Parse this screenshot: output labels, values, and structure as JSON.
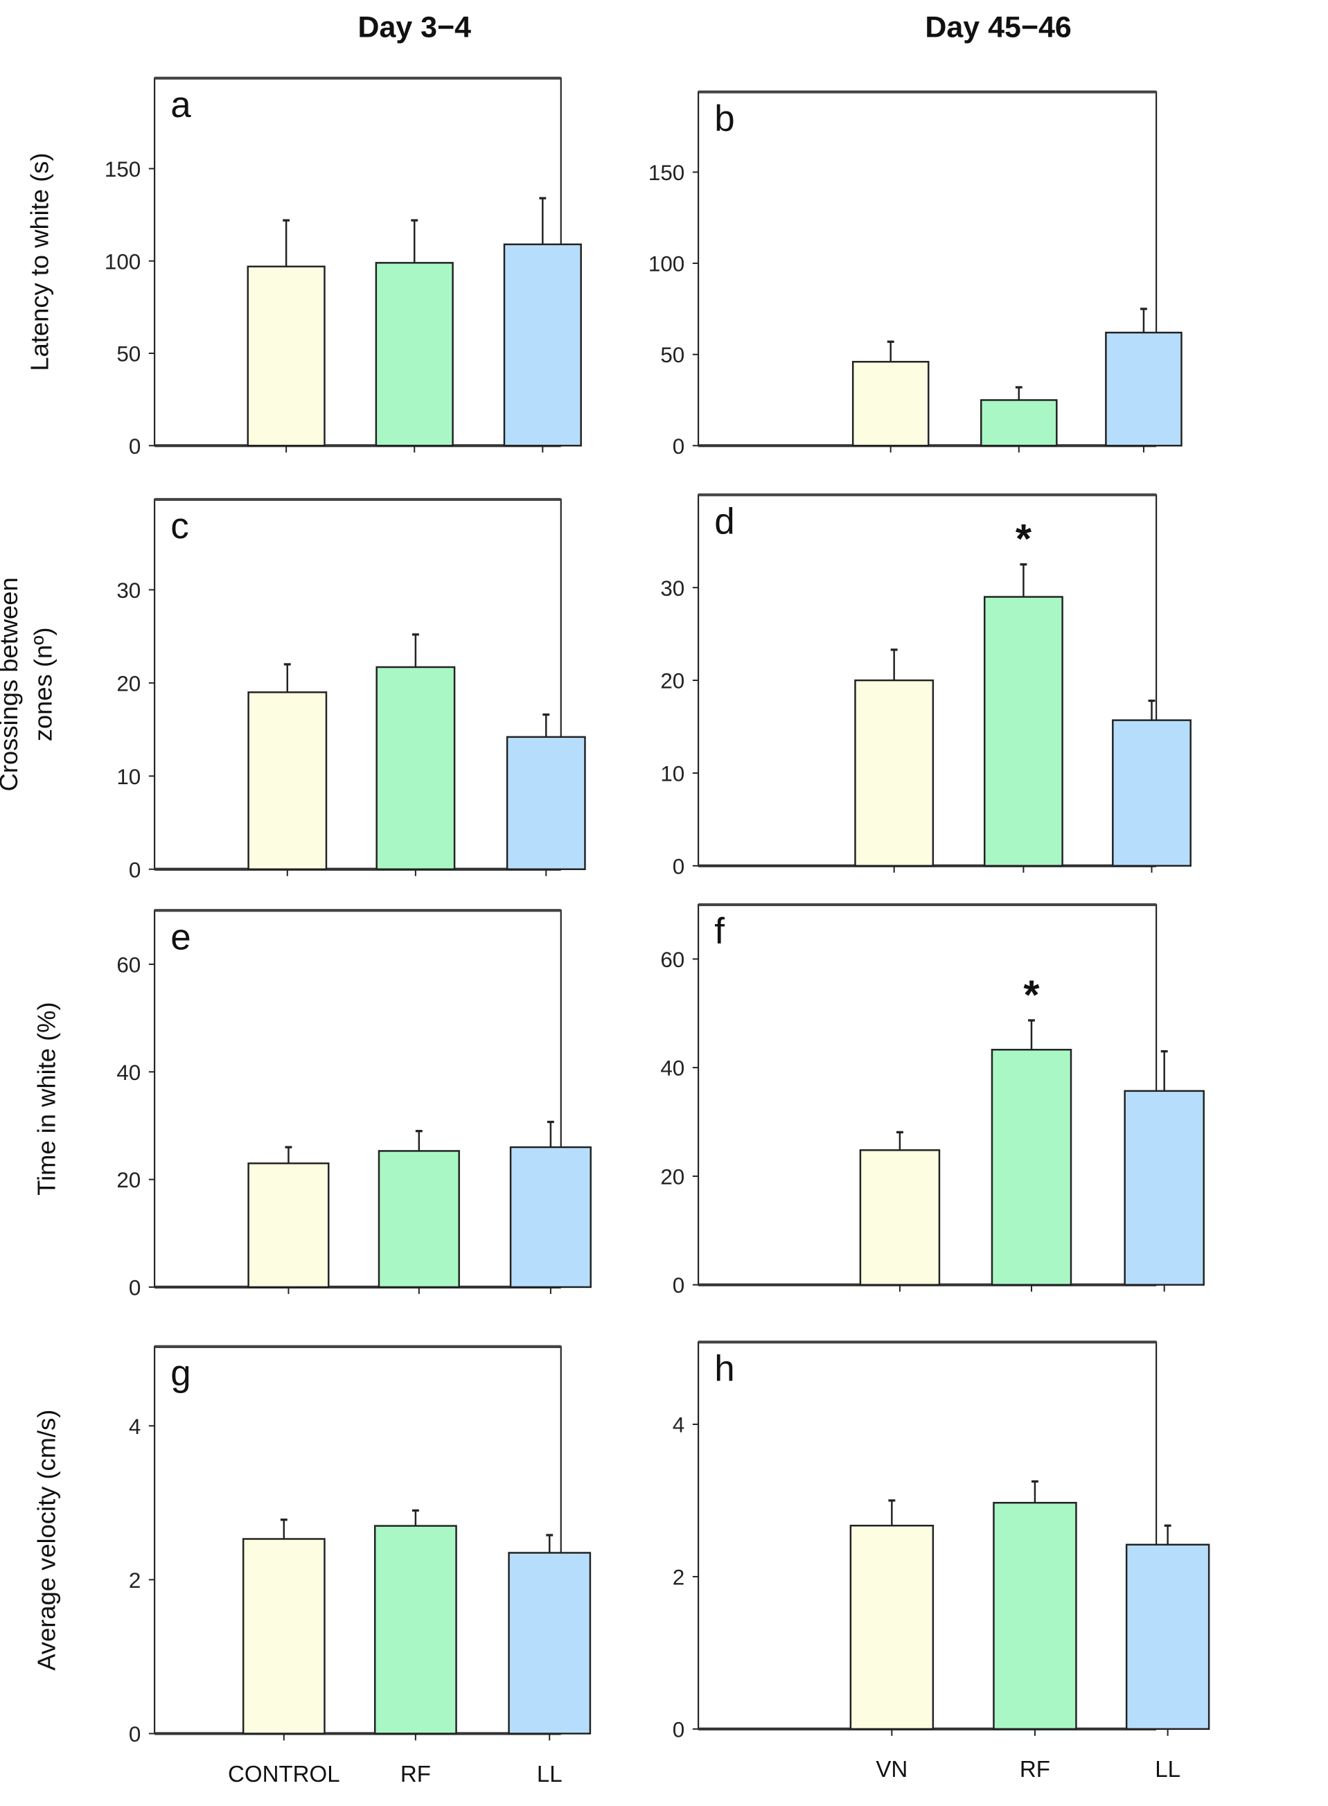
{
  "chart_data": {
    "type": "bar",
    "column_titles": [
      "Day 3−4",
      "Day 45−46"
    ],
    "colors": {
      "CONTROL": "#fdfde2",
      "VN": "#fdfde2",
      "RF": "#a9f7c5",
      "LL": "#b6defc"
    },
    "panels": [
      {
        "label": "a",
        "ylabel": [
          "Latency to white (s)"
        ],
        "categories": [
          "CONTROL",
          "RF",
          "LL"
        ],
        "show_xlabels": false,
        "ylim": [
          0,
          199
        ],
        "yticks": [
          0,
          50,
          100,
          150
        ],
        "values": [
          97,
          99,
          109
        ],
        "errors": [
          25,
          23,
          25
        ],
        "significance": [
          "",
          "",
          ""
        ]
      },
      {
        "label": "b",
        "ylabel": [],
        "categories": [
          "VN",
          "RF",
          "LL"
        ],
        "show_xlabels": false,
        "ylim": [
          0,
          194
        ],
        "yticks": [
          0,
          50,
          100,
          150
        ],
        "values": [
          46,
          25,
          62
        ],
        "errors": [
          11,
          7,
          13
        ],
        "significance": [
          "",
          "",
          ""
        ]
      },
      {
        "label": "c",
        "ylabel": [
          "Crossings between",
          "zones (nº)"
        ],
        "categories": [
          "CONTROL",
          "RF",
          "LL"
        ],
        "show_xlabels": false,
        "ylim": [
          0,
          39.7
        ],
        "yticks": [
          0,
          10,
          20,
          30
        ],
        "values": [
          19,
          21.7,
          14.2
        ],
        "errors": [
          3,
          3.5,
          2.4
        ],
        "significance": [
          "",
          "",
          ""
        ]
      },
      {
        "label": "d",
        "ylabel": [],
        "categories": [
          "VN",
          "RF",
          "LL"
        ],
        "show_xlabels": false,
        "ylim": [
          0,
          40
        ],
        "yticks": [
          0,
          10,
          20,
          30
        ],
        "values": [
          20,
          29,
          15.7
        ],
        "errors": [
          3.3,
          3.5,
          2.1
        ],
        "significance": [
          "",
          "*",
          ""
        ]
      },
      {
        "label": "e",
        "ylabel": [
          "Time in white (%)"
        ],
        "categories": [
          "CONTROL",
          "RF",
          "LL"
        ],
        "show_xlabels": false,
        "ylim": [
          0,
          70
        ],
        "yticks": [
          0,
          20,
          40,
          60
        ],
        "values": [
          23,
          25.3,
          26
        ],
        "errors": [
          3,
          3.7,
          4.7
        ],
        "significance": [
          "",
          "",
          ""
        ]
      },
      {
        "label": "f",
        "ylabel": [],
        "categories": [
          "VN",
          "RF",
          "LL"
        ],
        "show_xlabels": false,
        "ylim": [
          0,
          70
        ],
        "yticks": [
          0,
          20,
          40,
          60
        ],
        "values": [
          24.8,
          43.3,
          35.7
        ],
        "errors": [
          3.3,
          5.4,
          7.3
        ],
        "significance": [
          "",
          "*",
          ""
        ]
      },
      {
        "label": "g",
        "ylabel": [
          "Average velocity (cm/s)"
        ],
        "categories": [
          "CONTROL",
          "RF",
          "LL"
        ],
        "show_xlabels": true,
        "ylim": [
          0,
          5.03
        ],
        "yticks": [
          0,
          2,
          4
        ],
        "values": [
          2.53,
          2.7,
          2.35
        ],
        "errors": [
          0.25,
          0.2,
          0.23
        ],
        "significance": [
          "",
          "",
          ""
        ]
      },
      {
        "label": "h",
        "ylabel": [],
        "categories": [
          "VN",
          "RF",
          "LL"
        ],
        "show_xlabels": true,
        "ylim": [
          0,
          5.08
        ],
        "yticks": [
          0,
          2,
          4
        ],
        "values": [
          2.67,
          2.97,
          2.42
        ],
        "errors": [
          0.33,
          0.28,
          0.25
        ],
        "significance": [
          "",
          "",
          ""
        ]
      }
    ]
  }
}
